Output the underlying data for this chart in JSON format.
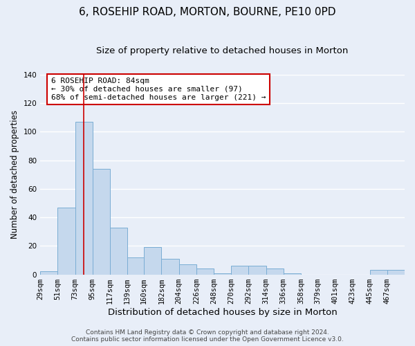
{
  "title": "6, ROSEHIP ROAD, MORTON, BOURNE, PE10 0PD",
  "subtitle": "Size of property relative to detached houses in Morton",
  "xlabel": "Distribution of detached houses by size in Morton",
  "ylabel": "Number of detached properties",
  "categories": [
    "29sqm",
    "51sqm",
    "73sqm",
    "95sqm",
    "117sqm",
    "139sqm",
    "160sqm",
    "182sqm",
    "204sqm",
    "226sqm",
    "248sqm",
    "270sqm",
    "292sqm",
    "314sqm",
    "336sqm",
    "358sqm",
    "379sqm",
    "401sqm",
    "423sqm",
    "445sqm",
    "467sqm"
  ],
  "bin_edges": [
    29,
    51,
    73,
    95,
    117,
    139,
    160,
    182,
    204,
    226,
    248,
    270,
    292,
    314,
    336,
    358,
    379,
    401,
    423,
    445,
    467,
    489
  ],
  "values": [
    2,
    47,
    107,
    74,
    33,
    12,
    19,
    11,
    7,
    4,
    1,
    6,
    6,
    4,
    1,
    0,
    0,
    0,
    0,
    3,
    3
  ],
  "bar_color": "#c5d8ed",
  "bar_edge_color": "#7aadd4",
  "background_color": "#e8eef8",
  "grid_color": "#ffffff",
  "vline_x": 84,
  "vline_color": "#cc0000",
  "annotation_box_text": "6 ROSEHIP ROAD: 84sqm\n← 30% of detached houses are smaller (97)\n68% of semi-detached houses are larger (221) →",
  "annotation_fontsize": 8.0,
  "title_fontsize": 11,
  "subtitle_fontsize": 9.5,
  "xlabel_fontsize": 9.5,
  "ylabel_fontsize": 8.5,
  "tick_fontsize": 7.5,
  "footer_text": "Contains HM Land Registry data © Crown copyright and database right 2024.\nContains public sector information licensed under the Open Government Licence v3.0.",
  "ylim": [
    0,
    140
  ],
  "yticks": [
    0,
    20,
    40,
    60,
    80,
    100,
    120,
    140
  ]
}
